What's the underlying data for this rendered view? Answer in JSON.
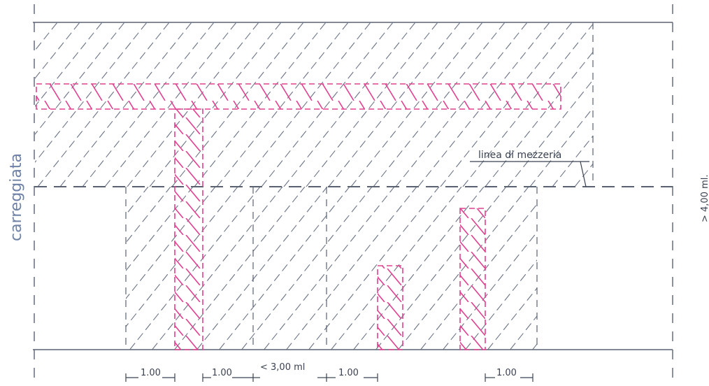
{
  "labels": {
    "road": "carreggiata",
    "centerline": "linea di mezzeria",
    "width": "> 4,00 ml."
  },
  "dimensions": [
    {
      "id": "dim-1",
      "text": "1.00"
    },
    {
      "id": "dim-2",
      "text": "1.00"
    },
    {
      "id": "dim-3",
      "text": "< 3,00 ml"
    },
    {
      "id": "dim-4",
      "text": "1.00"
    },
    {
      "id": "dim-5",
      "text": "1.00"
    }
  ],
  "colors": {
    "line": "#5a6272",
    "hatch": "#6b7385",
    "pink": "#e0408f",
    "road_text": "#6f82a6"
  }
}
